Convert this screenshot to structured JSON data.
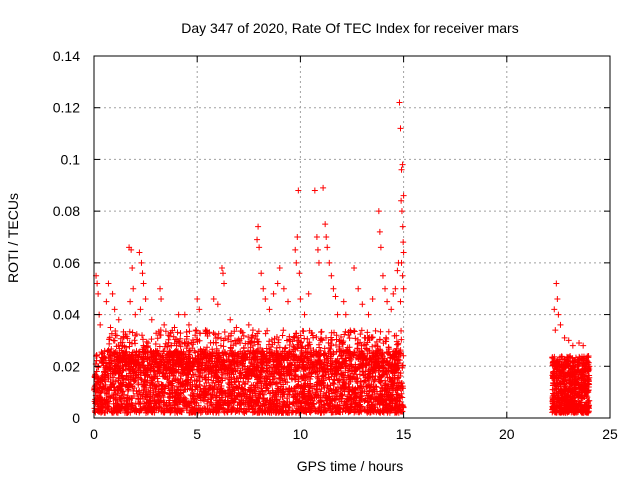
{
  "chart_data": {
    "type": "scatter",
    "title": "Day 347 of 2020, Rate Of TEC Index for receiver mars",
    "xlabel": "GPS time / hours",
    "ylabel": "ROTI / TECUs",
    "xlim": [
      0,
      25
    ],
    "ylim": [
      0,
      0.14
    ],
    "xticks": [
      0,
      5,
      10,
      15,
      20,
      25
    ],
    "yticks": [
      0,
      0.02,
      0.04,
      0.06,
      0.08,
      0.1,
      0.12,
      0.14
    ],
    "xtick_labels": [
      "0",
      "5",
      "10",
      "15",
      "20",
      "25"
    ],
    "ytick_labels": [
      "0",
      "0.02",
      "0.04",
      "0.06",
      "0.08",
      "0.1",
      "0.12",
      "0.14"
    ],
    "grid": true,
    "marker": "+",
    "marker_color": "#ff0000",
    "series": [
      {
        "points": [
          [
            0.1,
            0.055
          ],
          [
            0.15,
            0.052
          ],
          [
            0.2,
            0.048
          ],
          [
            0.25,
            0.04
          ],
          [
            0.3,
            0.036
          ],
          [
            0.1,
            0.024
          ],
          [
            0.2,
            0.02
          ],
          [
            0.6,
            0.045
          ],
          [
            0.7,
            0.052
          ],
          [
            0.9,
            0.048
          ],
          [
            1.0,
            0.042
          ],
          [
            1.2,
            0.038
          ],
          [
            0.8,
            0.035
          ],
          [
            1.7,
            0.066
          ],
          [
            1.8,
            0.065
          ],
          [
            1.85,
            0.058
          ],
          [
            1.9,
            0.05
          ],
          [
            1.75,
            0.045
          ],
          [
            2.0,
            0.04
          ],
          [
            2.2,
            0.064
          ],
          [
            2.3,
            0.06
          ],
          [
            2.35,
            0.056
          ],
          [
            2.4,
            0.052
          ],
          [
            2.5,
            0.046
          ],
          [
            2.25,
            0.042
          ],
          [
            2.8,
            0.038
          ],
          [
            3.2,
            0.05
          ],
          [
            3.25,
            0.046
          ],
          [
            3.4,
            0.036
          ],
          [
            3.6,
            0.032
          ],
          [
            3.9,
            0.035
          ],
          [
            4.1,
            0.04
          ],
          [
            4.4,
            0.04
          ],
          [
            4.6,
            0.036
          ],
          [
            4.9,
            0.032
          ],
          [
            5.0,
            0.046
          ],
          [
            5.1,
            0.042
          ],
          [
            5.4,
            0.034
          ],
          [
            5.8,
            0.046
          ],
          [
            6.0,
            0.044
          ],
          [
            6.2,
            0.058
          ],
          [
            6.25,
            0.056
          ],
          [
            6.3,
            0.052
          ],
          [
            6.6,
            0.038
          ],
          [
            6.9,
            0.035
          ],
          [
            7.2,
            0.033
          ],
          [
            7.5,
            0.036
          ],
          [
            7.7,
            0.034
          ],
          [
            7.95,
            0.074
          ],
          [
            7.9,
            0.069
          ],
          [
            8.0,
            0.066
          ],
          [
            8.1,
            0.056
          ],
          [
            8.2,
            0.05
          ],
          [
            8.3,
            0.046
          ],
          [
            8.5,
            0.042
          ],
          [
            8.7,
            0.048
          ],
          [
            8.9,
            0.052
          ],
          [
            9.0,
            0.058
          ],
          [
            9.2,
            0.05
          ],
          [
            9.4,
            0.045
          ],
          [
            9.75,
            0.065
          ],
          [
            9.8,
            0.06
          ],
          [
            9.85,
            0.07
          ],
          [
            9.9,
            0.088
          ],
          [
            9.95,
            0.056
          ],
          [
            10.0,
            0.046
          ],
          [
            10.2,
            0.04
          ],
          [
            10.4,
            0.048
          ],
          [
            10.7,
            0.088
          ],
          [
            10.8,
            0.07
          ],
          [
            10.85,
            0.065
          ],
          [
            10.9,
            0.06
          ],
          [
            11.1,
            0.089
          ],
          [
            11.2,
            0.075
          ],
          [
            11.25,
            0.07
          ],
          [
            11.3,
            0.066
          ],
          [
            11.4,
            0.06
          ],
          [
            11.5,
            0.055
          ],
          [
            11.6,
            0.05
          ],
          [
            11.7,
            0.047
          ],
          [
            11.8,
            0.04
          ],
          [
            12.1,
            0.045
          ],
          [
            12.2,
            0.04
          ],
          [
            12.6,
            0.058
          ],
          [
            12.8,
            0.05
          ],
          [
            13.0,
            0.044
          ],
          [
            13.3,
            0.04
          ],
          [
            13.5,
            0.046
          ],
          [
            13.8,
            0.08
          ],
          [
            13.85,
            0.072
          ],
          [
            13.9,
            0.066
          ],
          [
            14.0,
            0.055
          ],
          [
            14.1,
            0.05
          ],
          [
            14.2,
            0.045
          ],
          [
            14.4,
            0.042
          ],
          [
            14.5,
            0.048
          ],
          [
            14.6,
            0.05
          ],
          [
            14.7,
            0.057
          ],
          [
            14.75,
            0.06
          ],
          [
            14.8,
            0.122
          ],
          [
            14.85,
            0.112
          ],
          [
            14.9,
            0.096
          ],
          [
            14.95,
            0.098
          ],
          [
            15.0,
            0.086
          ],
          [
            14.88,
            0.084
          ],
          [
            14.92,
            0.08
          ],
          [
            14.96,
            0.074
          ],
          [
            14.98,
            0.068
          ],
          [
            15.0,
            0.064
          ],
          [
            14.9,
            0.06
          ],
          [
            14.95,
            0.055
          ],
          [
            15.0,
            0.05
          ],
          [
            14.85,
            0.045
          ],
          [
            22.4,
            0.052
          ],
          [
            22.45,
            0.046
          ],
          [
            22.3,
            0.042
          ],
          [
            22.5,
            0.04
          ],
          [
            22.6,
            0.036
          ],
          [
            22.35,
            0.034
          ],
          [
            22.8,
            0.031
          ],
          [
            23.0,
            0.03
          ],
          [
            23.2,
            0.028
          ],
          [
            23.5,
            0.029
          ],
          [
            23.7,
            0.028
          ],
          [
            23.9,
            0.022
          ]
        ]
      }
    ],
    "dense_bands": [
      {
        "x_range": [
          0,
          15
        ],
        "y_range": [
          0.002,
          0.026
        ],
        "samples": 3200
      },
      {
        "x_range": [
          0.7,
          14.9
        ],
        "y_range": [
          0.018,
          0.034
        ],
        "samples": 900
      },
      {
        "x_range": [
          22.2,
          24.0
        ],
        "y_range": [
          0.002,
          0.024
        ],
        "samples": 700
      }
    ]
  }
}
